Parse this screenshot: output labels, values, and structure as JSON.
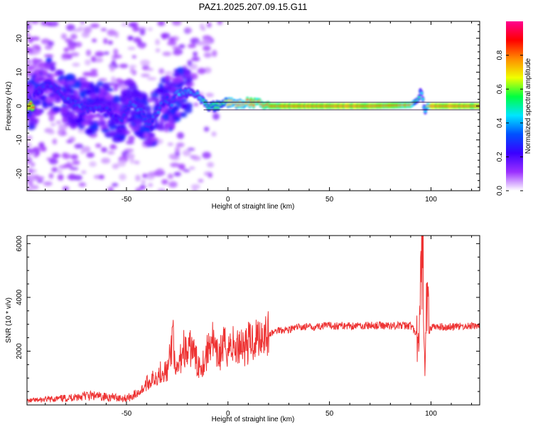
{
  "title": "PAZ1.2025.207.09.15.G11",
  "chart_data": [
    {
      "type": "heatmap",
      "title": "PAZ1.2025.207.09.15.G11",
      "xlabel": "Height of straight line (km)",
      "ylabel": "Frequency (Hz)",
      "xlim": [
        -99,
        124
      ],
      "ylim": [
        -25,
        25
      ],
      "xticks": [
        -50,
        0,
        50,
        100
      ],
      "yticks": [
        -20,
        -10,
        0,
        10,
        20
      ],
      "grid": false,
      "colorbar": {
        "label": "Normalized spectral amplitude",
        "range": [
          0.0,
          1.0
        ],
        "ticks": [
          "0.0",
          "0.2",
          "0.4",
          "0.6",
          "0.8"
        ],
        "colors": [
          "#ffffff",
          "#9b30ff",
          "#3a00ff",
          "#0050ff",
          "#00e5ff",
          "#00ff40",
          "#f0ff00",
          "#ff8c00",
          "#ff0000",
          "#ff0090"
        ]
      },
      "ridge": {
        "x": [
          -96,
          -92,
          -88,
          -84,
          -80,
          -76,
          -72,
          -68,
          -64,
          -60,
          -56,
          -52,
          -48,
          -46,
          -44,
          -42,
          -40,
          -38,
          -36,
          -34,
          -32,
          -30,
          -28,
          -26,
          -24,
          -22,
          -20,
          -18,
          -16,
          -14,
          -12,
          -10,
          -6,
          -2,
          0,
          4,
          8,
          12,
          16,
          20,
          30,
          50,
          70,
          90,
          94,
          95,
          96,
          97,
          98,
          100,
          110,
          124
        ],
        "y": [
          3,
          5,
          7,
          4,
          2,
          1,
          0,
          -1,
          0,
          -1,
          -3,
          -4,
          1,
          0,
          -1,
          -2,
          -5,
          -6,
          -3,
          -1,
          1,
          2,
          0,
          3,
          4,
          4,
          4,
          4,
          4,
          3,
          1,
          0,
          0,
          1,
          1,
          0.5,
          1,
          1,
          0.5,
          0,
          0,
          0,
          0,
          0.3,
          2,
          5,
          2,
          -2,
          0,
          0,
          0,
          0
        ],
        "amplitude": [
          0.2,
          0.25,
          0.3,
          0.25,
          0.3,
          0.3,
          0.35,
          0.3,
          0.3,
          0.25,
          0.25,
          0.3,
          0.3,
          0.35,
          0.35,
          0.3,
          0.3,
          0.3,
          0.35,
          0.35,
          0.3,
          0.3,
          0.3,
          0.35,
          0.4,
          0.4,
          0.35,
          0.4,
          0.4,
          0.4,
          0.5,
          0.55,
          0.55,
          0.6,
          0.7,
          0.7,
          0.75,
          0.8,
          0.8,
          0.85,
          0.9,
          0.9,
          0.9,
          0.8,
          0.5,
          0.4,
          0.4,
          0.4,
          0.6,
          0.9,
          0.9,
          0.9
        ]
      }
    },
    {
      "type": "line",
      "xlabel": "Height of straight line (km)",
      "ylabel": "SNR (10 * v/v)",
      "xlim": [
        -99,
        124
      ],
      "ylim": [
        0,
        6300
      ],
      "xticks": [
        -50,
        0,
        50,
        100
      ],
      "yticks": [
        2000,
        4000,
        6000
      ],
      "grid": false,
      "color": "#ee3333",
      "series": [
        {
          "x": [
            -99,
            -90,
            -80,
            -75,
            -70,
            -60,
            -50,
            -45,
            -42,
            -40,
            -38,
            -35,
            -32,
            -30,
            -28,
            -27,
            -26,
            -24,
            -22,
            -20,
            -18,
            -15,
            -12,
            -10,
            -8,
            -6,
            -4,
            -2,
            0,
            2,
            4,
            6,
            8,
            10,
            12,
            14,
            16,
            18,
            20,
            25,
            30,
            35,
            40,
            50,
            60,
            70,
            80,
            90,
            93,
            94,
            95,
            96,
            97,
            98,
            99,
            100,
            105,
            110,
            124
          ],
          "y": [
            150,
            200,
            250,
            300,
            350,
            300,
            250,
            400,
            600,
            800,
            900,
            1100,
            1300,
            1200,
            2000,
            3000,
            1000,
            1500,
            2200,
            1800,
            2200,
            1500,
            1600,
            2000,
            2600,
            1800,
            1900,
            2200,
            2100,
            2300,
            2000,
            2400,
            2200,
            2300,
            2400,
            2500,
            2600,
            2750,
            2600,
            2800,
            2800,
            2900,
            2900,
            2950,
            2950,
            2950,
            2950,
            2950,
            2600,
            1800,
            4500,
            6200,
            800,
            4400,
            2700,
            2900,
            2900,
            2900,
            2950
          ]
        }
      ]
    }
  ]
}
